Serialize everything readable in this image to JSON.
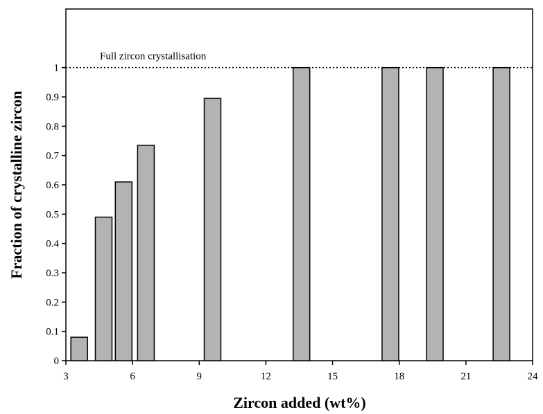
{
  "chart_data": {
    "type": "bar",
    "title": "",
    "xlabel": "Zircon added (wt%)",
    "ylabel": "Fraction of crystalline zircon",
    "xlim": [
      3,
      24
    ],
    "ylim": [
      0,
      1.2
    ],
    "x_ticks": [
      "3",
      "6",
      "9",
      "12",
      "15",
      "18",
      "21",
      "24"
    ],
    "y_ticks": [
      "0",
      "0.1",
      "0.2",
      "0.3",
      "0.4",
      "0.5",
      "0.6",
      "0.7",
      "0.8",
      "0.9",
      "1"
    ],
    "x": [
      3.6,
      4.7,
      5.6,
      6.6,
      9.6,
      13.6,
      17.6,
      19.6,
      22.6
    ],
    "values": [
      0.08,
      0.49,
      0.61,
      0.735,
      0.895,
      1.0,
      1.0,
      1.0,
      1.0
    ],
    "reference_line": {
      "y": 1.0,
      "label": "Full zircon crystallisation",
      "style": "dotted"
    },
    "bar_color": "#b3b3b3",
    "grid": false
  }
}
